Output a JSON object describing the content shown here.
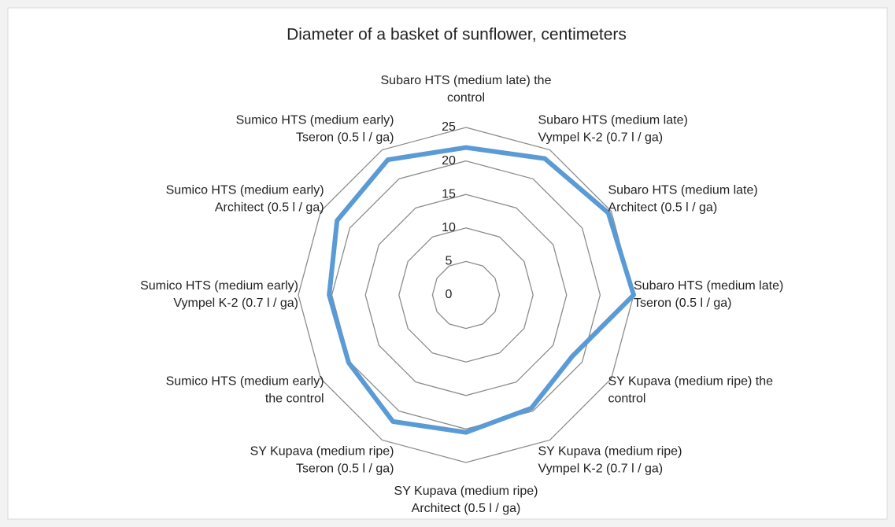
{
  "chart_data": {
    "type": "radar",
    "title": "Diameter of a basket of sunflower, centimeters",
    "categories": [
      "Subaro HTS (medium late)  the\ncontrol",
      "Subaro HTS (medium late)\nVympel K-2 (0.7 l / ga)",
      "Subaro HTS (medium late)\nArchitect (0.5 l / ga)",
      "Subaro HTS (medium late)\nTseron  (0.5 l / ga)",
      "SY Kupava (medium ripe)  the\ncontrol",
      "SY Kupava (medium ripe)\nVympel K-2 (0.7 l / ga)",
      "SY Kupava (medium ripe)\nArchitect (0.5 l / ga)",
      "SY Kupava (medium ripe)\nTseron  (0.5 l / ga)",
      "Sumico HTS (medium early)\nthe control",
      "Sumico HTS (medium early)\nVympel K-2 (0.7 l / ga)",
      "Sumico HTS (medium early)\nArchitect (0.5 l / ga)",
      "Sumico HTS (medium early)\nTseron  (0.5 l / ga)"
    ],
    "values": [
      22,
      23.5,
      24.5,
      25,
      18.3,
      19.5,
      20.5,
      21.8,
      20.2,
      20.4,
      22.2,
      23.3
    ],
    "color": "#5b9bd5",
    "ylim": [
      0,
      25
    ],
    "yticks": [
      0,
      5,
      10,
      15,
      20,
      25
    ],
    "grid": true
  }
}
